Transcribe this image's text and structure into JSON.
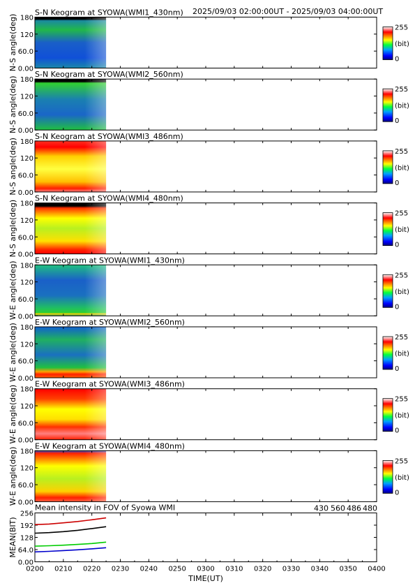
{
  "header": {
    "range": "2025/09/03 02:00:00UT - 2025/09/03 04:00:00UT"
  },
  "colorbar": {
    "max_label": "255",
    "unit_label": "(bit)",
    "min_label": "0"
  },
  "chart_data": [
    {
      "type": "heatmap",
      "title": "S-N Keogram at SYOWA(WMI1_430nm)",
      "ylabel": "N-S angle(deg)",
      "yticks": [
        "180",
        "120",
        "60.0",
        "0.00"
      ],
      "ylim": [
        0,
        180
      ],
      "xlim": [
        "02:00",
        "04:00"
      ],
      "data_until": "02:25",
      "value_range": [
        0,
        255
      ],
      "colormap": "rainbow (blue-green-yellow-red-white)",
      "profile": "low blue-green counts, slightly greener toward 180 deg; dark band at 175-180 deg"
    },
    {
      "type": "heatmap",
      "title": "S-N Keogram at SYOWA(WMI2_560nm)",
      "ylabel": "N-S angle(deg)",
      "yticks": [
        "180",
        "120",
        "60.0",
        "0.00"
      ],
      "ylim": [
        0,
        180
      ],
      "xlim": [
        "02:00",
        "04:00"
      ],
      "data_until": "02:25",
      "value_range": [
        0,
        255
      ],
      "colormap": "rainbow (blue-green-yellow-red-white)",
      "profile": "blue-green with green edges; dark band at 175-180 deg"
    },
    {
      "type": "heatmap",
      "title": "S-N Keogram at SYOWA(WMI3_486nm)",
      "ylabel": "N-S angle(deg)",
      "yticks": [
        "180",
        "120",
        "60.0",
        "0.00"
      ],
      "ylim": [
        0,
        180
      ],
      "xlim": [
        "02:00",
        "04:00"
      ],
      "data_until": "02:25",
      "value_range": [
        0,
        255
      ],
      "colormap": "rainbow (blue-green-yellow-red-white)",
      "profile": "saturated: yellow center, red to white toward 0 and 180 deg"
    },
    {
      "type": "heatmap",
      "title": "S-N Keogram at SYOWA(WMI4_480nm)",
      "ylabel": "N-S angle(deg)",
      "yticks": [
        "180",
        "120",
        "60.0",
        "0.00"
      ],
      "ylim": [
        0,
        180
      ],
      "xlim": [
        "02:00",
        "04:00"
      ],
      "data_until": "02:25",
      "value_range": [
        0,
        255
      ],
      "colormap": "rainbow (blue-green-yellow-red-white)",
      "profile": "yellow-green center, red toward edges; dark band at 175-180 deg"
    },
    {
      "type": "heatmap",
      "title": "E-W Keogram at SYOWA(WMI1_430nm)",
      "ylabel": "W-E angle(deg)",
      "yticks": [
        "180",
        "120",
        "60.0",
        "0.00"
      ],
      "ylim": [
        0,
        180
      ],
      "xlim": [
        "02:00",
        "04:00"
      ],
      "data_until": "02:25",
      "value_range": [
        0,
        255
      ],
      "colormap": "rainbow (blue-green-yellow-red-white)",
      "profile": "blue-green, green toward 0 deg; thin yellow line near 0 deg"
    },
    {
      "type": "heatmap",
      "title": "E-W Keogram at SYOWA(WMI2_560nm)",
      "ylabel": "W-E angle(deg)",
      "yticks": [
        "180",
        "120",
        "60.0",
        "0.00"
      ],
      "ylim": [
        0,
        180
      ],
      "xlim": [
        "02:00",
        "04:00"
      ],
      "data_until": "02:25",
      "value_range": [
        0,
        255
      ],
      "colormap": "rainbow (blue-green-yellow-red-white)",
      "profile": "blue-green, red/orange band near 0 deg"
    },
    {
      "type": "heatmap",
      "title": "E-W Keogram at SYOWA(WMI3_486nm)",
      "ylabel": "W-E angle(deg)",
      "yticks": [
        "180",
        "120",
        "60.0",
        "0.00"
      ],
      "ylim": [
        0,
        180
      ],
      "xlim": [
        "02:00",
        "04:00"
      ],
      "data_until": "02:25",
      "value_range": [
        0,
        255
      ],
      "colormap": "rainbow (blue-green-yellow-red-white)",
      "profile": "red-white saturated, yellow center near 100 deg"
    },
    {
      "type": "heatmap",
      "title": "E-W Keogram at SYOWA(WMI4_480nm)",
      "ylabel": "W-E angle(deg)",
      "yticks": [
        "180",
        "120",
        "60.0",
        "0.00"
      ],
      "ylim": [
        0,
        180
      ],
      "xlim": [
        "02:00",
        "04:00"
      ],
      "data_until": "02:25",
      "value_range": [
        0,
        255
      ],
      "colormap": "rainbow (blue-green-yellow-red-white)",
      "profile": "yellow-green center, red toward edges; blue band near 175 deg"
    },
    {
      "type": "line",
      "title": "Mean intensity in FOV of Syowa WMI",
      "ylabel": "MEAN(BIT)",
      "xlabel": "TIME(UT)",
      "yticks": [
        "256",
        "192",
        "128",
        "64.0",
        "0.00"
      ],
      "ylim": [
        0,
        256
      ],
      "xlim": [
        "02:00",
        "04:00"
      ],
      "xticks": [
        "0200",
        "0210",
        "0220",
        "0230",
        "0240",
        "0250",
        "0300",
        "0310",
        "0320",
        "0330",
        "0340",
        "0350",
        "0400"
      ],
      "x": [
        "02:00",
        "02:05",
        "02:10",
        "02:15",
        "02:20",
        "02:25"
      ],
      "series": [
        {
          "name": "430",
          "color": "#0000cc",
          "values": [
            52,
            55,
            59,
            63,
            68,
            74
          ]
        },
        {
          "name": "560",
          "color": "#00cc00",
          "values": [
            82,
            84,
            87,
            91,
            96,
            103
          ]
        },
        {
          "name": "486",
          "color": "#cc0000",
          "values": [
            195,
            198,
            204,
            211,
            220,
            230
          ]
        },
        {
          "name": "480",
          "color": "#000000",
          "values": [
            150,
            153,
            158,
            165,
            174,
            184
          ]
        }
      ]
    }
  ]
}
